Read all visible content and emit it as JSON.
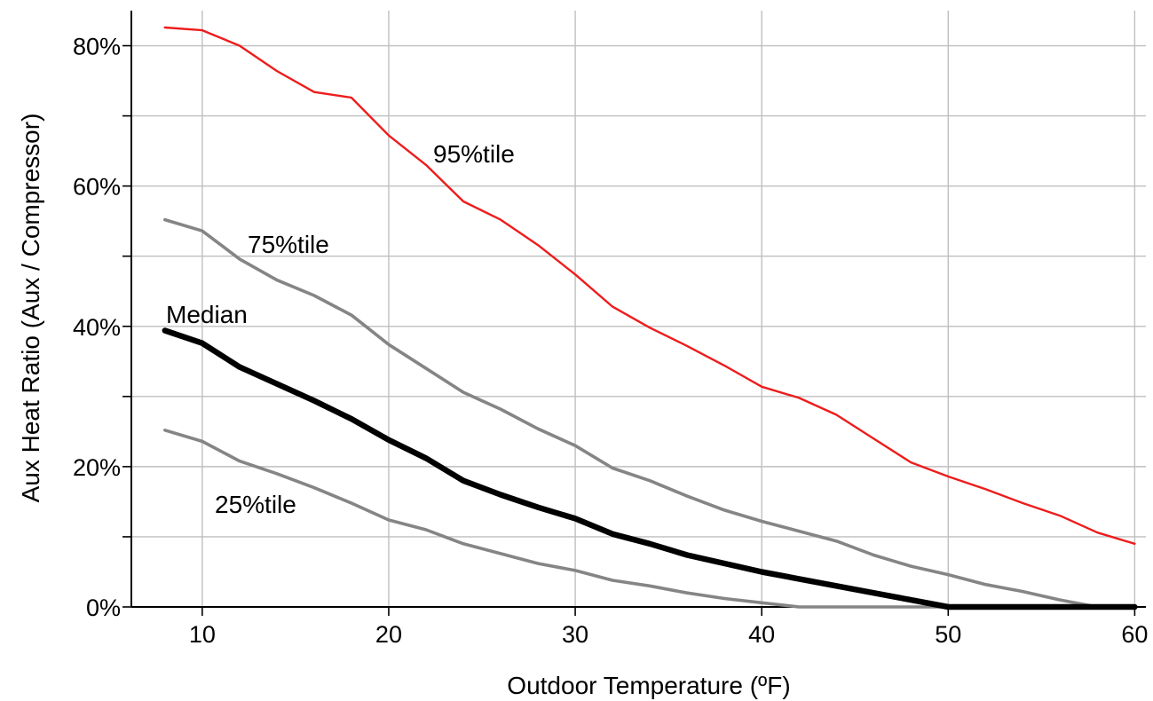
{
  "chart_data": {
    "type": "line",
    "title": "",
    "xlabel": "Outdoor Temperature (ºF)",
    "ylabel": "Aux Heat Ratio (Aux / Compressor)",
    "xlim": [
      6.2,
      60.6
    ],
    "ylim": [
      0,
      0.85
    ],
    "xticks": [
      10,
      20,
      30,
      40,
      50,
      60
    ],
    "xtick_labels": [
      "10",
      "20",
      "30",
      "40",
      "50",
      "60"
    ],
    "yticks": [
      0,
      0.2,
      0.4,
      0.6,
      0.8
    ],
    "ytick_labels": [
      "0%",
      "20%",
      "40%",
      "60%",
      "80%"
    ],
    "grid": true,
    "legend": "none (series labeled inline)",
    "x": [
      8,
      10,
      12,
      14,
      16,
      18,
      20,
      22,
      24,
      26,
      28,
      30,
      32,
      34,
      36,
      38,
      40,
      42,
      44,
      46,
      48,
      50,
      52,
      54,
      56,
      58,
      60
    ],
    "series": [
      {
        "name": "95%tile",
        "color": "#ee1c1c",
        "values": [
          0.826,
          0.822,
          0.8,
          0.764,
          0.734,
          0.726,
          0.672,
          0.63,
          0.578,
          0.552,
          0.516,
          0.474,
          0.428,
          0.398,
          0.372,
          0.344,
          0.314,
          0.298,
          0.274,
          0.24,
          0.206,
          0.186,
          0.168,
          0.148,
          0.13,
          0.106,
          0.09
        ]
      },
      {
        "name": "75%tile",
        "color": "#858585",
        "values": [
          0.552,
          0.536,
          0.496,
          0.466,
          0.444,
          0.416,
          0.374,
          0.34,
          0.306,
          0.282,
          0.254,
          0.23,
          0.198,
          0.18,
          0.158,
          0.138,
          0.122,
          0.108,
          0.094,
          0.074,
          0.058,
          0.046,
          0.032,
          0.022,
          0.01,
          0.0,
          0.0
        ]
      },
      {
        "name": "Median",
        "color": "#000000",
        "values": [
          0.394,
          0.376,
          0.342,
          0.318,
          0.294,
          0.268,
          0.238,
          0.212,
          0.18,
          0.16,
          0.142,
          0.126,
          0.104,
          0.09,
          0.074,
          0.062,
          0.05,
          0.04,
          0.03,
          0.02,
          0.01,
          0.0,
          0.0,
          0.0,
          0.0,
          0.0,
          0.0
        ]
      },
      {
        "name": "25%tile",
        "color": "#858585",
        "values": [
          0.252,
          0.236,
          0.208,
          0.19,
          0.17,
          0.148,
          0.124,
          0.11,
          0.09,
          0.076,
          0.062,
          0.052,
          0.038,
          0.03,
          0.02,
          0.012,
          0.006,
          0.0,
          0.0,
          0.0,
          0.0,
          0.0,
          0.0,
          0.0,
          0.0,
          0.0,
          0.0
        ]
      }
    ]
  }
}
